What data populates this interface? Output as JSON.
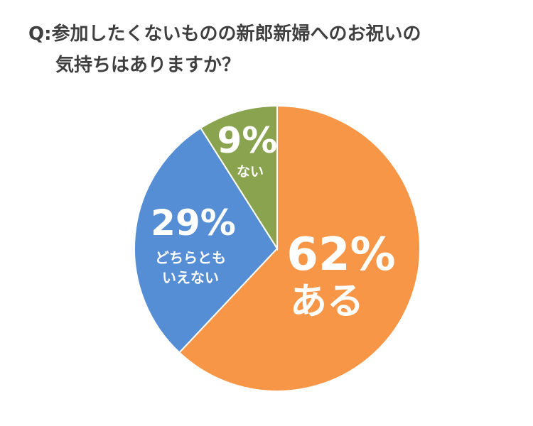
{
  "title": {
    "line1": "Q:参加したくないものの新郎新婦へのお祝いの",
    "line2": "気持ちはありますか？"
  },
  "chart_data": {
    "type": "pie",
    "slices": [
      {
        "label": "ある",
        "percent_text": "62%",
        "value": 62,
        "color": "#f79646"
      },
      {
        "label": "どちらとも いえない",
        "percent_text": "29%",
        "value": 29,
        "color": "#558ed5"
      },
      {
        "label": "ない",
        "percent_text": "9%",
        "value": 9,
        "color": "#8aa34f"
      }
    ],
    "start_angle_deg": 0,
    "direction": "clockwise",
    "legend": "none"
  }
}
